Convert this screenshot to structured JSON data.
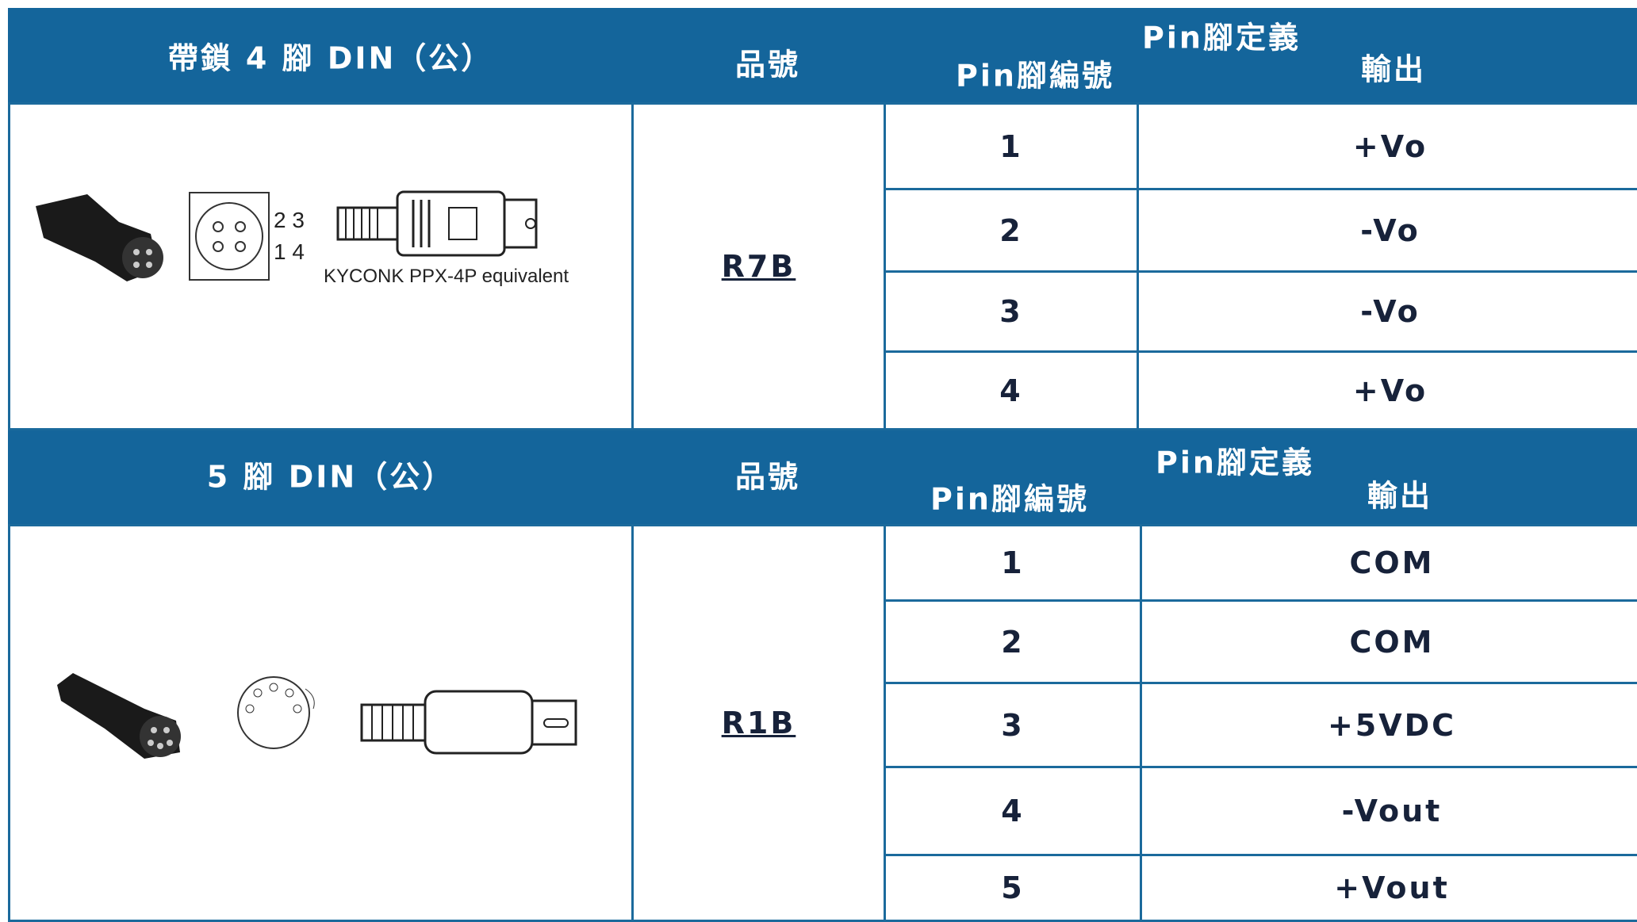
{
  "sections": [
    {
      "header": {
        "connector": "帶鎖 4 腳 DIN（公）",
        "part_no": "品號",
        "pin_def": "Pin腳定義",
        "pin_no": "Pin腳編號",
        "output": "輸出"
      },
      "part_no": "R7B",
      "image": {
        "pins_top": "2 3",
        "pins_bottom": "1 4",
        "caption": "KYCONK PPX-4P equivalent"
      },
      "rows": [
        [
          "1",
          "+Vo"
        ],
        [
          "2",
          "-Vo"
        ],
        [
          "3",
          "-Vo"
        ],
        [
          "4",
          "+Vo"
        ]
      ]
    },
    {
      "header": {
        "connector": "5 腳 DIN（公）",
        "part_no": "品號",
        "pin_def": "Pin腳定義",
        "pin_no": "Pin腳編號",
        "output": "輸出"
      },
      "part_no": "R1B",
      "rows": [
        [
          "1",
          "COM"
        ],
        [
          "2",
          "COM"
        ],
        [
          "3",
          "+5VDC"
        ],
        [
          "4",
          "-Vout"
        ],
        [
          "5",
          "+Vout"
        ]
      ]
    }
  ]
}
